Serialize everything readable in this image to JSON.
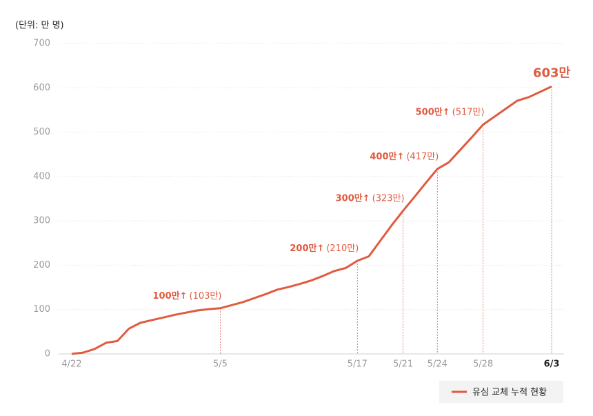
{
  "chart_data": {
    "type": "line",
    "unit_label": "(단위: 만 명)",
    "x": [
      "4/22",
      "4/23",
      "4/24",
      "4/25",
      "4/26",
      "4/27",
      "4/28",
      "4/29",
      "4/30",
      "5/1",
      "5/2",
      "5/3",
      "5/4",
      "5/5",
      "5/6",
      "5/7",
      "5/8",
      "5/9",
      "5/10",
      "5/11",
      "5/12",
      "5/13",
      "5/14",
      "5/15",
      "5/16",
      "5/17",
      "5/18",
      "5/19",
      "5/20",
      "5/21",
      "5/22",
      "5/23",
      "5/24",
      "5/25",
      "5/26",
      "5/27",
      "5/28",
      "5/29",
      "5/30",
      "5/31",
      "6/1",
      "6/2",
      "6/3"
    ],
    "series": [
      {
        "name": "유심 교체 누적 현황",
        "color": "#e05a40",
        "values": [
          0,
          3,
          11,
          25,
          29,
          57,
          70,
          76,
          82,
          88,
          93,
          98,
          101,
          103,
          110,
          117,
          126,
          135,
          145,
          151,
          158,
          166,
          176,
          187,
          194,
          210,
          220,
          255,
          290,
          323,
          354,
          386,
          417,
          432,
          460,
          488,
          517,
          535,
          553,
          571,
          579,
          591,
          603
        ],
        "value_labels": [
          null,
          null,
          null,
          null,
          null,
          null,
          null,
          null,
          null,
          null,
          null,
          null,
          null,
          "(103만)",
          null,
          null,
          null,
          null,
          null,
          null,
          null,
          null,
          null,
          null,
          null,
          "(210만)",
          null,
          null,
          null,
          "(323만)",
          null,
          null,
          "(417만)",
          null,
          null,
          null,
          "(517만)",
          null,
          null,
          null,
          null,
          null,
          "603만"
        ]
      }
    ],
    "annotations": [
      {
        "x": "5/5",
        "label": "100만↑"
      },
      {
        "x": "5/17",
        "label": "200만↑"
      },
      {
        "x": "5/21",
        "label": "300만↑"
      },
      {
        "x": "5/24",
        "label": "400만↑"
      },
      {
        "x": "5/28",
        "label": "500만↑"
      }
    ],
    "xticks": [
      "4/22",
      "5/5",
      "5/17",
      "5/21",
      "5/24",
      "5/28",
      "6/3"
    ],
    "ylim": [
      0,
      700
    ],
    "yticks": [
      0,
      100,
      200,
      300,
      400,
      500,
      600,
      700
    ],
    "grid": true,
    "legend": "bottom-right"
  }
}
